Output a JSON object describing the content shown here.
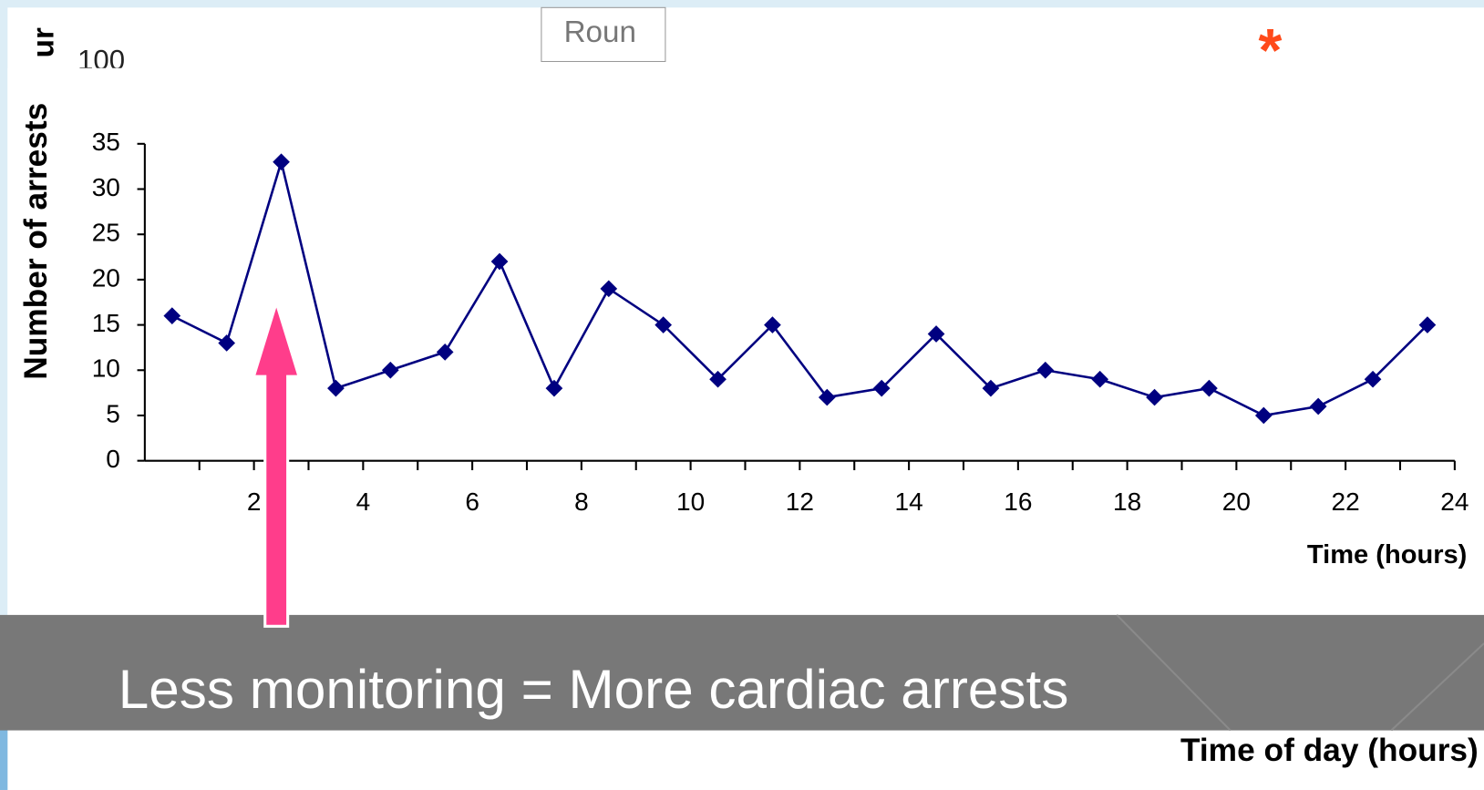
{
  "chart_data": {
    "type": "line",
    "title": "Less monitoring = More cardiac arrests",
    "y_label": "Number of arrests",
    "x_label": "Time (hours)",
    "x_label_2": "Time of day (hours)",
    "background_texts": [
      "ur",
      "100",
      "Roun",
      "*"
    ],
    "x": [
      0.5,
      1.5,
      2.5,
      3.5,
      4.5,
      5.5,
      6.5,
      7.5,
      8.5,
      9.5,
      10.5,
      11.5,
      12.5,
      13.5,
      14.5,
      15.5,
      16.5,
      17.5,
      18.5,
      19.5,
      20.5,
      21.5,
      22.5,
      23.5
    ],
    "series": [
      {
        "color": "#000080",
        "values": [
          16,
          13,
          33,
          8,
          10,
          12,
          22,
          8,
          19,
          15,
          9,
          15,
          7,
          8,
          14,
          8,
          10,
          9,
          7,
          8,
          5,
          6,
          9,
          15
        ]
      }
    ],
    "xlim": [
      0,
      24
    ],
    "xticks": [
      2,
      4,
      6,
      8,
      10,
      12,
      14,
      16,
      18,
      20,
      22,
      24
    ],
    "xminorticks": [
      1,
      3,
      5,
      7,
      9,
      11,
      13,
      15,
      17,
      19,
      21,
      23
    ],
    "ylim": [
      0,
      35
    ],
    "yticks": [
      0,
      5,
      10,
      15,
      20,
      25,
      30,
      35
    ],
    "grid": false
  }
}
